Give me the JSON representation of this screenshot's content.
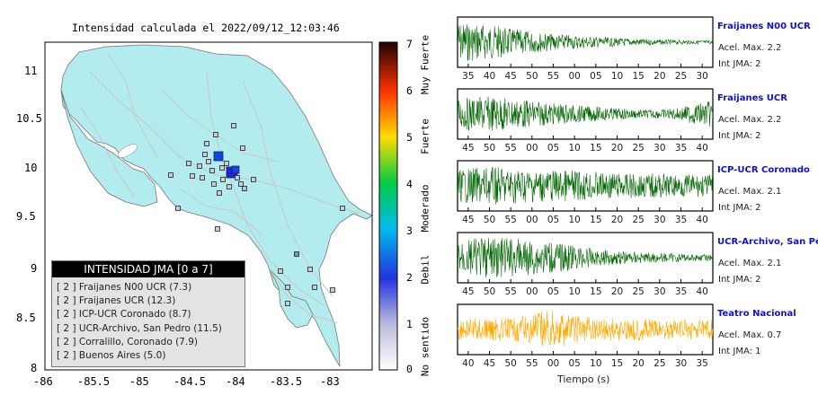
{
  "map": {
    "title": "Intensidad calculada el 2022/09/12_12:03:46",
    "x_ticks": [
      "-86",
      "-85.5",
      "-85",
      "-84.5",
      "-84",
      "-83.5",
      "-83"
    ],
    "y_ticks": [
      "11",
      "10.5",
      "10",
      "9.5",
      "9",
      "8.5",
      "8"
    ],
    "legend_title": "INTENSIDAD JMA [0 a 7]",
    "legend_entries": [
      "[ 2 ]  Fraijanes N00 UCR (7.3)",
      "[ 2 ]  Fraijanes UCR (12.3)",
      "[ 2 ]  ICP-UCR Coronado (8.7)",
      "[ 2 ]  UCR-Archivo, San Pedro (11.5)",
      "[ 2 ]  Corralillo, Coronado (7.9)",
      "[ 2 ]  Buenos Aires (5.0)"
    ],
    "colors": {
      "land": "#b3ecef",
      "sea": "#ffffff",
      "roads": "#c4c4c4",
      "border": "#777777",
      "legend_header": "#000000",
      "legend_box": "#e3e3e3"
    }
  },
  "colorbar": {
    "ticks": [
      "0",
      "1",
      "2",
      "3",
      "4",
      "5",
      "6",
      "7"
    ],
    "labels": [
      "No sentido",
      "Debil",
      "Moderado",
      "Fuerte",
      "Muy Fuerte"
    ],
    "colors": [
      "#ffffff",
      "#bbbbdd",
      "#2222dd",
      "#00bbee",
      "#00cc44",
      "#ffdd00",
      "#ff6600",
      "#ee0000",
      "#220000"
    ]
  },
  "chart_data": [
    {
      "type": "line",
      "title": "Fraijanes N00 UCR",
      "accel": "Acel. Max. 2.2",
      "jma": "Int JMA: 2",
      "x_tick_labels": [
        "35",
        "40",
        "45",
        "50",
        "55",
        "00",
        "05",
        "10",
        "15",
        "20",
        "25",
        "30"
      ],
      "color": "#006600",
      "envelope": [
        0.9,
        0.85,
        0.75,
        0.6,
        0.5,
        0.4,
        0.33,
        0.28,
        0.22,
        0.18,
        0.15,
        0.12,
        0.1,
        0.09,
        0.08
      ]
    },
    {
      "type": "line",
      "title": "Fraijanes UCR",
      "accel": "Acel. Max. 2.2",
      "jma": "Int JMA: 2",
      "x_tick_labels": [
        "45",
        "50",
        "55",
        "00",
        "05",
        "10",
        "15",
        "20",
        "25",
        "30",
        "35",
        "40"
      ],
      "color": "#006600",
      "envelope": [
        0.7,
        0.75,
        0.8,
        0.7,
        0.6,
        0.5,
        0.45,
        0.35,
        0.3,
        0.25,
        0.2,
        0.2,
        0.25,
        0.45,
        0.6
      ]
    },
    {
      "type": "line",
      "title": "ICP-UCR Coronado",
      "accel": "Acel. Max. 2.1",
      "jma": "Int JMA: 2",
      "x_tick_labels": [
        "45",
        "50",
        "55",
        "00",
        "05",
        "10",
        "15",
        "20",
        "25",
        "30",
        "35",
        "40"
      ],
      "color": "#006600",
      "envelope": [
        0.75,
        0.8,
        0.85,
        0.8,
        0.75,
        0.7,
        0.7,
        0.65,
        0.6,
        0.55,
        0.55,
        0.55,
        0.5,
        0.5,
        0.5
      ]
    },
    {
      "type": "line",
      "title": "UCR-Archivo, San Pedro",
      "accel": "Acel. Max. 2.1",
      "jma": "Int JMA: 2",
      "x_tick_labels": [
        "45",
        "50",
        "55",
        "00",
        "05",
        "10",
        "15",
        "20",
        "25",
        "30",
        "35",
        "40"
      ],
      "color": "#006600",
      "envelope": [
        0.8,
        0.85,
        0.9,
        0.85,
        0.8,
        0.7,
        0.6,
        0.45,
        0.35,
        0.3,
        0.25,
        0.2,
        0.2,
        0.15,
        0.15
      ]
    },
    {
      "type": "line",
      "title": "Teatro Nacional",
      "accel": "Acel. Max. 0.7",
      "jma": "Int JMA: 1",
      "x_tick_labels": [
        "40",
        "45",
        "50",
        "55",
        "00",
        "05",
        "10",
        "15",
        "20",
        "25",
        "30",
        "35"
      ],
      "xlabel": "Tiempo (s)",
      "color": "#ffaa00",
      "envelope": [
        0.5,
        0.5,
        0.55,
        0.5,
        0.7,
        0.9,
        0.7,
        0.6,
        0.55,
        0.5,
        0.5,
        0.45,
        0.45,
        0.45,
        0.45
      ]
    }
  ]
}
